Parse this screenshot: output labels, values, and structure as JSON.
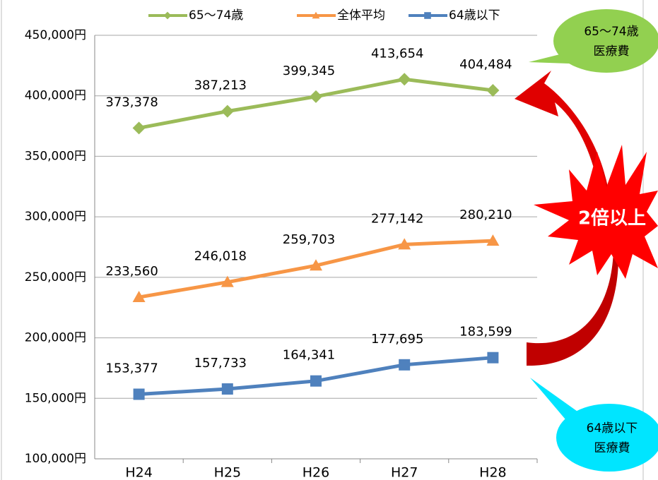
{
  "chart_data": {
    "type": "line",
    "categories": [
      "H24",
      "H25",
      "H26",
      "H27",
      "H28"
    ],
    "series": [
      {
        "name": "65〜74歳",
        "color": "#9bbb59",
        "marker": "diamond",
        "values": [
          373378,
          387213,
          399345,
          413654,
          404484
        ],
        "value_labels": [
          "373,378",
          "387,213",
          "399,345",
          "413,654",
          "404,484"
        ]
      },
      {
        "name": "全体平均",
        "color": "#f79646",
        "marker": "triangle",
        "values": [
          233560,
          246018,
          259703,
          277142,
          280210
        ],
        "value_labels": [
          "233,560",
          "246,018",
          "259,703",
          "277,142",
          "280,210"
        ]
      },
      {
        "name": "64歳以下",
        "color": "#4f81bd",
        "marker": "square",
        "values": [
          153377,
          157733,
          164341,
          177695,
          183599
        ],
        "value_labels": [
          "153,377",
          "157,733",
          "164,341",
          "177,695",
          "183,599"
        ]
      }
    ],
    "ylim": [
      100000,
      450000
    ],
    "yticks": [
      {
        "value": 100000,
        "label": "100,000円"
      },
      {
        "value": 150000,
        "label": "150,000円"
      },
      {
        "value": 200000,
        "label": "200,000円"
      },
      {
        "value": 250000,
        "label": "250,000円"
      },
      {
        "value": 300000,
        "label": "300,000円"
      },
      {
        "value": 350000,
        "label": "350,000円"
      },
      {
        "value": 400000,
        "label": "400,000円"
      },
      {
        "value": 450000,
        "label": "450,000円"
      }
    ],
    "grid": true,
    "legend": "top",
    "annotations": [
      [
        "65〜74歳",
        "医療費"
      ],
      [
        "2倍以上"
      ],
      [
        "64歳以下",
        "医療費"
      ]
    ]
  }
}
